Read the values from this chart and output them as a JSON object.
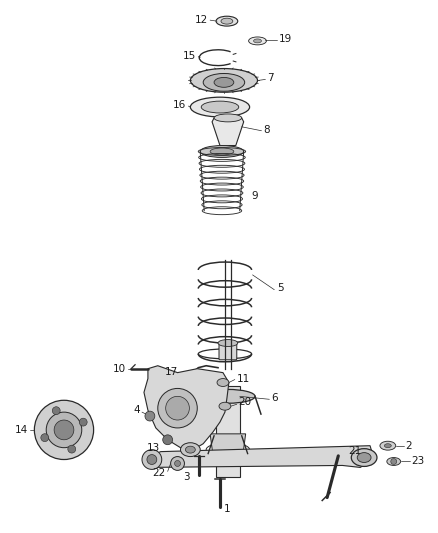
{
  "bg_color": "#ffffff",
  "line_color": "#2a2a2a",
  "label_color": "#1a1a1a",
  "figsize": [
    4.38,
    5.33
  ],
  "dpi": 100
}
